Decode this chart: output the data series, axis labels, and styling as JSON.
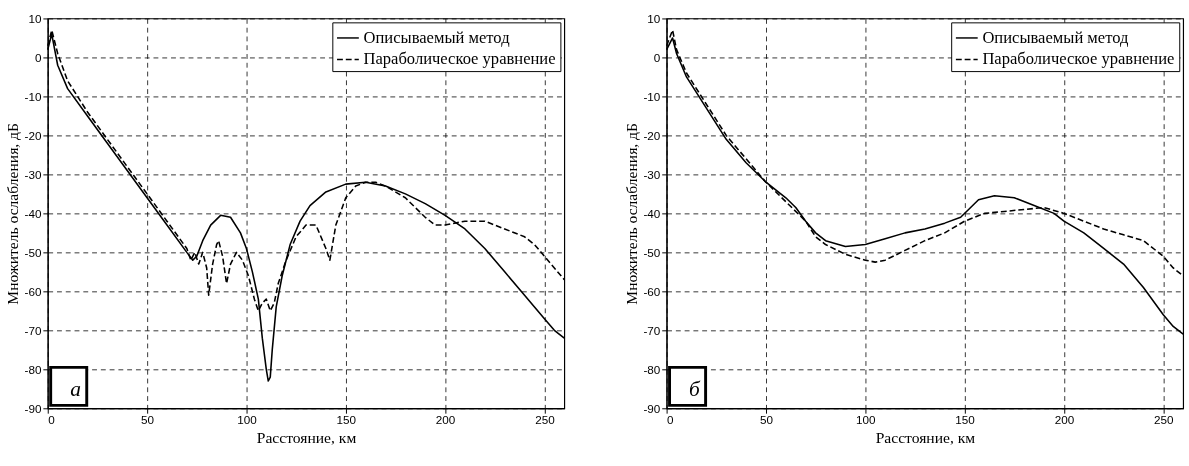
{
  "chart_data": [
    {
      "type": "line",
      "xlabel": "Расстояние, км",
      "ylabel": "Множитель ослабления, дБ",
      "xlim": [
        0,
        260
      ],
      "ylim": [
        -90,
        10
      ],
      "xticks": [
        0,
        50,
        100,
        150,
        200,
        250
      ],
      "yticks": [
        -90,
        -80,
        -70,
        -60,
        -50,
        -40,
        -30,
        -20,
        -10,
        0,
        10
      ],
      "grid": true,
      "legend": "top right",
      "annotations": [
        "а"
      ],
      "series": [
        {
          "name": "Описываемый метод",
          "color": "#000000",
          "line_style": "solid",
          "x": [
            0,
            2,
            5,
            10,
            20,
            30,
            40,
            50,
            60,
            70,
            73,
            75,
            78,
            82,
            87,
            92,
            97,
            100,
            103,
            106,
            108,
            110,
            111,
            112,
            113,
            115,
            118,
            122,
            127,
            132,
            140,
            150,
            160,
            170,
            180,
            190,
            200,
            210,
            220,
            230,
            240,
            250,
            255,
            260
          ],
          "values": [
            2,
            6,
            -2,
            -8,
            -15,
            -22,
            -29,
            -36,
            -43,
            -50,
            -52,
            -51,
            -47,
            -43,
            -40.5,
            -41,
            -45,
            -49,
            -55,
            -62,
            -72,
            -80,
            -83,
            -82,
            -75,
            -64,
            -56,
            -48,
            -42,
            -38,
            -34.5,
            -32.5,
            -32,
            -33,
            -35,
            -37.5,
            -40.5,
            -44,
            -49,
            -55,
            -61,
            -67,
            -70,
            -72
          ]
        },
        {
          "name": "Параболическое уравнение",
          "color": "#000000",
          "line_style": "dashed",
          "x": [
            0,
            2,
            5,
            10,
            20,
            30,
            40,
            50,
            60,
            70,
            72,
            74,
            76,
            78,
            80,
            81,
            83,
            85,
            86,
            88,
            90,
            92,
            95,
            98,
            101,
            104,
            106,
            108,
            110,
            112,
            114,
            116,
            120,
            125,
            130,
            135,
            140,
            142,
            145,
            150,
            155,
            160,
            165,
            170,
            180,
            190,
            195,
            200,
            210,
            220,
            230,
            240,
            245,
            250,
            255,
            260
          ],
          "values": [
            3,
            7,
            1,
            -6,
            -14,
            -21,
            -28,
            -35,
            -42,
            -49,
            -52,
            -50,
            -53,
            -50,
            -54,
            -61,
            -53,
            -48,
            -47,
            -51,
            -58,
            -53,
            -50,
            -52,
            -56,
            -62,
            -65,
            -63,
            -62,
            -65,
            -63,
            -58,
            -52,
            -46,
            -43,
            -43,
            -49,
            -52,
            -43,
            -36,
            -33,
            -32,
            -32,
            -33,
            -36,
            -41,
            -43,
            -43,
            -42,
            -42,
            -44,
            -46,
            -48,
            -51,
            -54,
            -57
          ]
        }
      ]
    },
    {
      "type": "line",
      "xlabel": "Расстояние, км",
      "ylabel": "Множитель ослабления, дБ",
      "xlim": [
        0,
        260
      ],
      "ylim": [
        -90,
        10
      ],
      "xticks": [
        0,
        50,
        100,
        150,
        200,
        250
      ],
      "yticks": [
        -90,
        -80,
        -70,
        -60,
        -50,
        -40,
        -30,
        -20,
        -10,
        0,
        10
      ],
      "grid": true,
      "legend": "top right",
      "annotations": [
        "б"
      ],
      "series": [
        {
          "name": "Описываемый метод",
          "color": "#000000",
          "line_style": "solid",
          "x": [
            0,
            3,
            5,
            10,
            20,
            30,
            40,
            50,
            60,
            65,
            70,
            75,
            80,
            90,
            100,
            110,
            120,
            130,
            140,
            148,
            152,
            157,
            165,
            175,
            185,
            195,
            200,
            210,
            220,
            230,
            240,
            250,
            255,
            260
          ],
          "values": [
            2,
            5,
            1,
            -5,
            -13,
            -21,
            -27,
            -32,
            -36,
            -38.5,
            -42,
            -45,
            -47,
            -48.5,
            -48,
            -46.5,
            -45,
            -44,
            -42.5,
            -41,
            -39,
            -36.5,
            -35.5,
            -36,
            -38,
            -40,
            -42,
            -45,
            -49,
            -53,
            -59,
            -66,
            -69,
            -71
          ]
        },
        {
          "name": "Параболическое уравнение",
          "color": "#000000",
          "line_style": "dashed",
          "x": [
            0,
            3,
            5,
            10,
            20,
            30,
            40,
            50,
            60,
            70,
            75,
            80,
            90,
            100,
            105,
            110,
            120,
            130,
            140,
            150,
            160,
            170,
            180,
            190,
            200,
            210,
            220,
            230,
            240,
            250,
            255,
            260
          ],
          "values": [
            3,
            7,
            2,
            -4,
            -12,
            -20,
            -26,
            -32,
            -37,
            -42,
            -46,
            -48,
            -50.5,
            -52,
            -52.5,
            -52,
            -49.5,
            -47,
            -45,
            -42,
            -40,
            -39.5,
            -39,
            -38.5,
            -40,
            -42,
            -44,
            -45.5,
            -47,
            -51,
            -54,
            -56
          ]
        }
      ]
    }
  ]
}
